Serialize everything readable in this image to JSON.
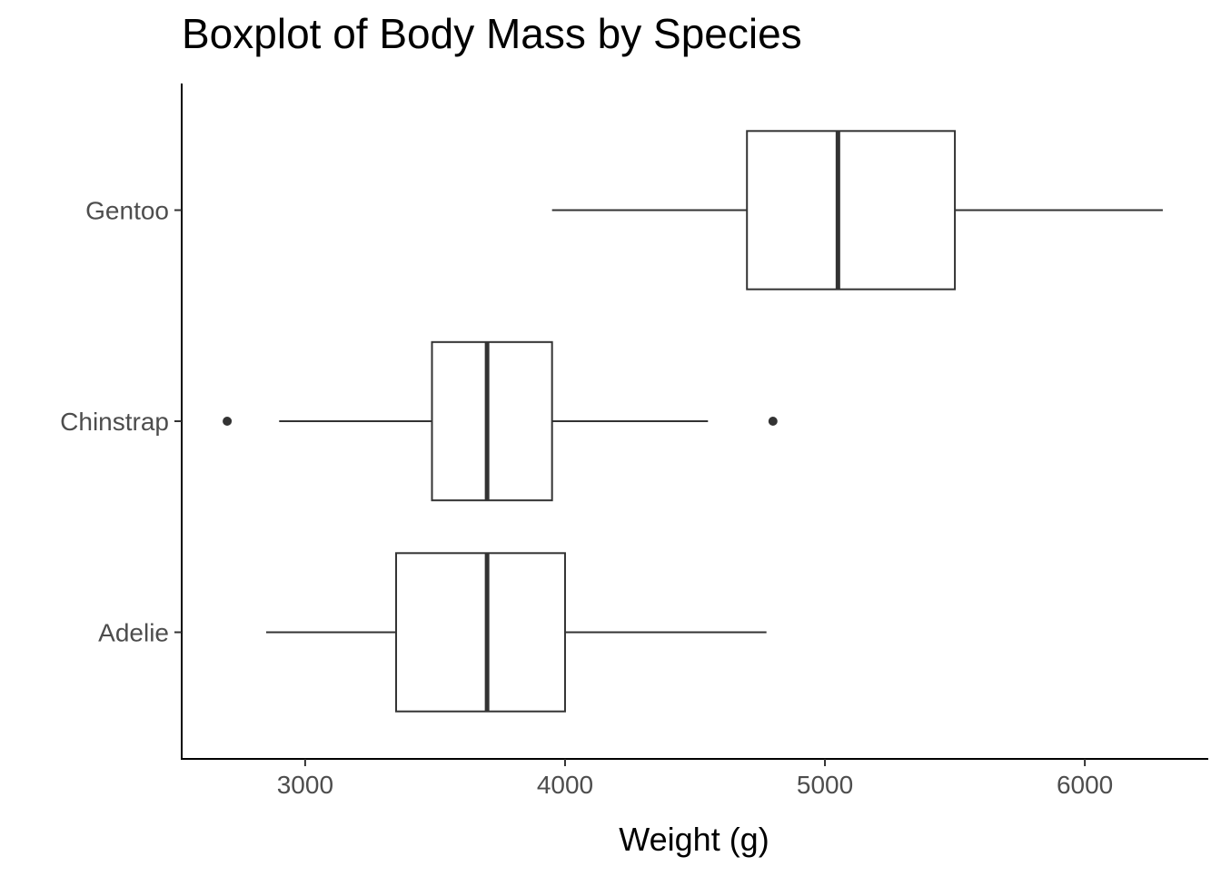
{
  "chart_data": {
    "type": "boxplot",
    "orientation": "horizontal",
    "title": "Boxplot of Body Mass by Species",
    "xlabel": "Weight (g)",
    "ylabel": "",
    "xlim": [
      2525,
      6475
    ],
    "xticks": [
      3000,
      4000,
      5000,
      6000
    ],
    "categories": [
      "Adelie",
      "Chinstrap",
      "Gentoo"
    ],
    "boxes": [
      {
        "category": "Adelie",
        "whisker_low": 2850,
        "q1": 3350,
        "median": 3700,
        "q3": 4000,
        "whisker_high": 4775,
        "outliers": []
      },
      {
        "category": "Chinstrap",
        "whisker_low": 2900,
        "q1": 3488,
        "median": 3700,
        "q3": 3950,
        "whisker_high": 4550,
        "outliers": [
          2700,
          4800
        ]
      },
      {
        "category": "Gentoo",
        "whisker_low": 3950,
        "q1": 4700,
        "median": 5050,
        "q3": 5500,
        "whisker_high": 6300,
        "outliers": []
      }
    ],
    "grid": false,
    "legend": "none",
    "colors": {
      "box_fill": "#ffffff",
      "box_stroke": "#333333",
      "axis": "#000000",
      "tick_label": "#4d4d4d"
    }
  }
}
